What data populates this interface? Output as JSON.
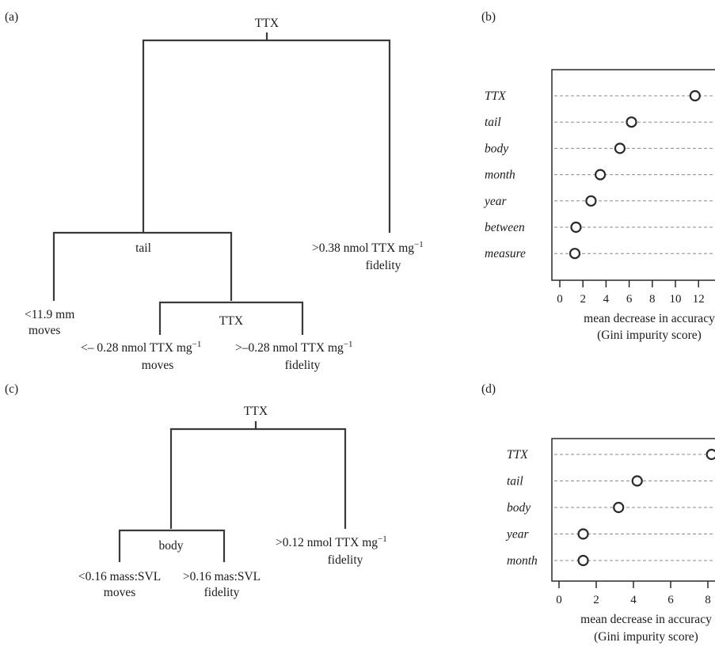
{
  "panel_labels": {
    "a": "(a)",
    "b": "(b)",
    "c": "(c)",
    "d": "(d)"
  },
  "tree_a": {
    "root": "TTX",
    "left_split": "tail",
    "leaf_left_value": "<11.9 mm",
    "leaf_left_class": "moves",
    "inner_split": "TTX",
    "leaf_mid_left_value": "<– 0.28 nmol TTX mg",
    "leaf_mid_left_sup": "−1",
    "leaf_mid_left_class": "moves",
    "leaf_mid_right_value": ">–0.28 nmol TTX mg",
    "leaf_mid_right_sup": "−1",
    "leaf_mid_right_class": "fidelity",
    "leaf_right_value": ">0.38 nmol TTX mg",
    "leaf_right_sup": "−1",
    "leaf_right_class": "fidelity"
  },
  "tree_c": {
    "root": "TTX",
    "left_split": "body",
    "leaf_left_value": "<0.16 mass:SVL",
    "leaf_left_class": "moves",
    "leaf_mid_value": ">0.16 mas:SVL",
    "leaf_mid_class": "fidelity",
    "leaf_right_value": ">0.12 nmol TTX mg",
    "leaf_right_sup": "−1",
    "leaf_right_class": "fidelity"
  },
  "chart_data": [
    {
      "panel": "(b)",
      "type": "scatter",
      "categories": [
        "TTX",
        "tail",
        "body",
        "month",
        "year",
        "between",
        "measure"
      ],
      "values": [
        11.7,
        6.2,
        5.2,
        3.5,
        2.7,
        1.4,
        1.3
      ],
      "xticks": [
        0,
        2,
        4,
        6,
        8,
        10,
        12
      ],
      "xlabel": "mean decrease in accuracy",
      "xlabel2": "(Gini impurity score)",
      "grid": true
    },
    {
      "panel": "(d)",
      "type": "scatter",
      "categories": [
        "TTX",
        "tail",
        "body",
        "year",
        "month"
      ],
      "values": [
        8.2,
        4.2,
        3.2,
        1.3,
        1.3
      ],
      "xticks": [
        0,
        2,
        4,
        6,
        8
      ],
      "xlabel": "mean decrease in accuracy",
      "xlabel2": "(Gini impurity score)",
      "grid": true
    }
  ]
}
